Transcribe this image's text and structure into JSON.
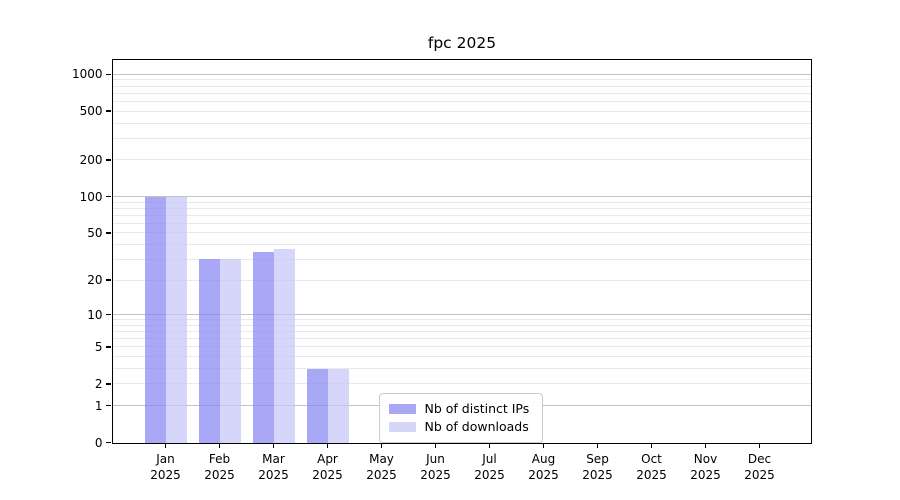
{
  "page": {
    "background": "#ffffff"
  },
  "chart_data": {
    "type": "bar",
    "title": "fpc 2025",
    "categories": [
      "Jan 2025",
      "Feb 2025",
      "Mar 2025",
      "Apr 2025",
      "May 2025",
      "Jun 2025",
      "Jul 2025",
      "Aug 2025",
      "Sep 2025",
      "Oct 2025",
      "Nov 2025",
      "Dec 2025"
    ],
    "series": [
      {
        "name": "Nb of distinct IPs",
        "color": "rgba(134,134,242,0.72)",
        "values": [
          100,
          30,
          35,
          3,
          0,
          0,
          0,
          0,
          0,
          0,
          0,
          0
        ]
      },
      {
        "name": "Nb of downloads",
        "color": "rgba(198,198,250,0.72)",
        "values": [
          100,
          30,
          37,
          3,
          0,
          0,
          0,
          0,
          0,
          0,
          0,
          0
        ]
      }
    ],
    "xlabel": "",
    "ylabel": "",
    "yscale": "log1p",
    "yticks": [
      0,
      1,
      2,
      5,
      10,
      20,
      50,
      100,
      200,
      500,
      1000
    ],
    "ylim": [
      0,
      1300
    ],
    "grid": "horizontal, major at powers of 10, minor at 2-9 per decade",
    "legend_position": "lower center, inside plot",
    "colors": {
      "grid_major": "#c3c3c3",
      "grid_minor": "#e9e9e9",
      "spine": "#000000",
      "text": "#000000"
    }
  }
}
